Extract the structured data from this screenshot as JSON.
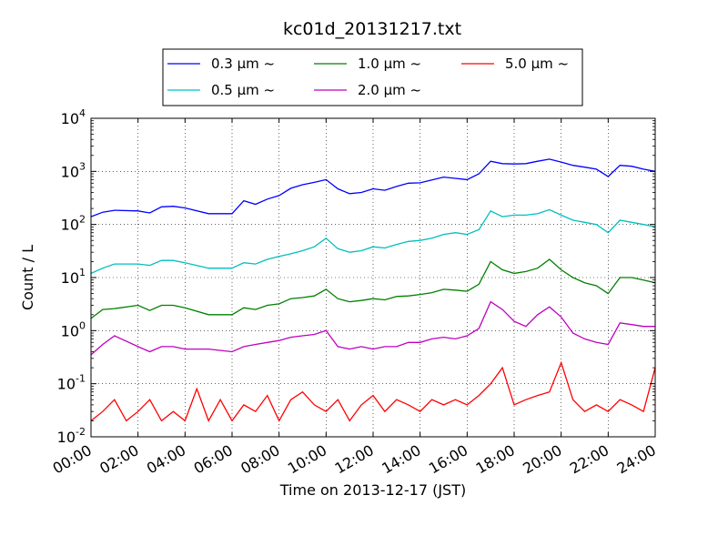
{
  "chart_data": {
    "type": "line",
    "title": "kc01d_20131217.txt",
    "xlabel": "Time on 2013-12-17 (JST)",
    "ylabel": "Count / L",
    "y_scale": "log",
    "ylim": [
      0.01,
      10000
    ],
    "xlim": [
      "00:00",
      "24:00"
    ],
    "grid": true,
    "legend_placement": "top-center",
    "x_ticks": [
      "00:00",
      "02:00",
      "04:00",
      "06:00",
      "08:00",
      "10:00",
      "12:00",
      "14:00",
      "16:00",
      "18:00",
      "20:00",
      "22:00",
      "24:00"
    ],
    "y_ticks": [
      {
        "value": 0.01,
        "base": "10",
        "exp": "-2"
      },
      {
        "value": 0.1,
        "base": "10",
        "exp": "-1"
      },
      {
        "value": 1,
        "base": "10",
        "exp": "0"
      },
      {
        "value": 10,
        "base": "10",
        "exp": "1"
      },
      {
        "value": 100,
        "base": "10",
        "exp": "2"
      },
      {
        "value": 1000,
        "base": "10",
        "exp": "3"
      },
      {
        "value": 10000,
        "base": "10",
        "exp": "4"
      }
    ],
    "series": [
      {
        "name": "0.3 μm ~",
        "color": "#0000ff",
        "x": [
          "00:00",
          "00:30",
          "01:00",
          "02:00",
          "02:30",
          "03:00",
          "03:30",
          "04:00",
          "05:00",
          "06:00",
          "06:30",
          "07:00",
          "07:30",
          "08:00",
          "08:30",
          "09:00",
          "09:30",
          "10:00",
          "10:30",
          "11:00",
          "11:30",
          "12:00",
          "12:30",
          "13:00",
          "13:30",
          "14:00",
          "14:30",
          "15:00",
          "15:30",
          "16:00",
          "16:30",
          "17:00",
          "17:30",
          "18:00",
          "18:30",
          "19:00",
          "19:30",
          "20:00",
          "20:30",
          "21:00",
          "21:30",
          "22:00",
          "22:30",
          "23:00",
          "23:30",
          "24:00"
        ],
        "y": [
          140,
          170,
          185,
          180,
          165,
          215,
          220,
          205,
          160,
          160,
          280,
          240,
          300,
          350,
          480,
          560,
          620,
          700,
          470,
          380,
          400,
          470,
          440,
          520,
          600,
          610,
          690,
          780,
          740,
          700,
          900,
          1550,
          1400,
          1380,
          1400,
          1550,
          1700,
          1500,
          1300,
          1200,
          1100,
          800,
          1300,
          1250,
          1100,
          1000
        ]
      },
      {
        "name": "0.5 μm ~",
        "color": "#00bfbf",
        "x": [
          "00:00",
          "00:30",
          "01:00",
          "02:00",
          "02:30",
          "03:00",
          "03:30",
          "04:00",
          "05:00",
          "06:00",
          "06:30",
          "07:00",
          "07:30",
          "08:00",
          "08:30",
          "09:00",
          "09:30",
          "10:00",
          "10:30",
          "11:00",
          "11:30",
          "12:00",
          "12:30",
          "13:00",
          "13:30",
          "14:00",
          "14:30",
          "15:00",
          "15:30",
          "16:00",
          "16:30",
          "17:00",
          "17:30",
          "18:00",
          "18:30",
          "19:00",
          "19:30",
          "20:00",
          "20:30",
          "21:00",
          "21:30",
          "22:00",
          "22:30",
          "23:00",
          "23:30",
          "24:00"
        ],
        "y": [
          12,
          15,
          18,
          18,
          17,
          21,
          21,
          19,
          15,
          15,
          19,
          18,
          22,
          25,
          28,
          32,
          38,
          55,
          35,
          30,
          32,
          38,
          36,
          42,
          48,
          50,
          55,
          65,
          70,
          65,
          80,
          180,
          140,
          150,
          150,
          160,
          190,
          150,
          120,
          110,
          100,
          70,
          120,
          110,
          100,
          90
        ]
      },
      {
        "name": "1.0 μm ~",
        "color": "#008000",
        "x": [
          "00:00",
          "00:30",
          "01:00",
          "02:00",
          "02:30",
          "03:00",
          "03:30",
          "04:00",
          "05:00",
          "06:00",
          "06:30",
          "07:00",
          "07:30",
          "08:00",
          "08:30",
          "09:00",
          "09:30",
          "10:00",
          "10:30",
          "11:00",
          "11:30",
          "12:00",
          "12:30",
          "13:00",
          "13:30",
          "14:00",
          "14:30",
          "15:00",
          "15:30",
          "16:00",
          "16:30",
          "17:00",
          "17:30",
          "18:00",
          "18:30",
          "19:00",
          "19:30",
          "20:00",
          "20:30",
          "21:00",
          "21:30",
          "22:00",
          "22:30",
          "23:00",
          "23:30",
          "24:00"
        ],
        "y": [
          1.7,
          2.5,
          2.6,
          3.0,
          2.4,
          3.0,
          3.0,
          2.7,
          2.0,
          2.0,
          2.7,
          2.5,
          3.0,
          3.2,
          4.0,
          4.2,
          4.5,
          6.0,
          4.0,
          3.5,
          3.7,
          4.0,
          3.8,
          4.4,
          4.5,
          4.8,
          5.2,
          6.0,
          5.8,
          5.5,
          7.5,
          20,
          14,
          12,
          13,
          15,
          22,
          14,
          10,
          8,
          7,
          5,
          10,
          10,
          9,
          8
        ]
      },
      {
        "name": "2.0 μm ~",
        "color": "#bf00bf",
        "x": [
          "00:00",
          "00:30",
          "01:00",
          "02:00",
          "02:30",
          "03:00",
          "03:30",
          "04:00",
          "05:00",
          "06:00",
          "06:30",
          "07:00",
          "07:30",
          "08:00",
          "08:30",
          "09:00",
          "09:30",
          "10:00",
          "10:30",
          "11:00",
          "11:30",
          "12:00",
          "12:30",
          "13:00",
          "13:30",
          "14:00",
          "14:30",
          "15:00",
          "15:30",
          "16:00",
          "16:30",
          "17:00",
          "17:30",
          "18:00",
          "18:30",
          "19:00",
          "19:30",
          "20:00",
          "20:30",
          "21:00",
          "21:30",
          "22:00",
          "22:30",
          "23:00",
          "23:30",
          "24:00"
        ],
        "y": [
          0.35,
          0.55,
          0.8,
          0.5,
          0.4,
          0.5,
          0.5,
          0.45,
          0.45,
          0.4,
          0.5,
          0.55,
          0.6,
          0.65,
          0.75,
          0.8,
          0.85,
          1.0,
          0.5,
          0.45,
          0.5,
          0.45,
          0.5,
          0.5,
          0.6,
          0.6,
          0.7,
          0.75,
          0.7,
          0.8,
          1.1,
          3.5,
          2.5,
          1.5,
          1.2,
          2.0,
          2.8,
          1.8,
          0.9,
          0.7,
          0.6,
          0.55,
          1.4,
          1.3,
          1.2,
          1.2
        ]
      },
      {
        "name": "5.0 μm ~",
        "color": "#ff0000",
        "x": [
          "00:00",
          "00:30",
          "01:00",
          "01:30",
          "02:00",
          "02:30",
          "03:00",
          "03:30",
          "04:00",
          "04:30",
          "05:00",
          "05:30",
          "06:00",
          "06:30",
          "07:00",
          "07:30",
          "08:00",
          "08:30",
          "09:00",
          "09:30",
          "10:00",
          "10:30",
          "11:00",
          "11:30",
          "12:00",
          "12:30",
          "13:00",
          "13:30",
          "14:00",
          "14:30",
          "15:00",
          "15:30",
          "16:00",
          "16:30",
          "17:00",
          "17:30",
          "18:00",
          "18:30",
          "19:00",
          "19:30",
          "20:00",
          "20:30",
          "21:00",
          "21:30",
          "22:00",
          "22:30",
          "23:00",
          "23:30",
          "24:00"
        ],
        "y": [
          0.02,
          0.03,
          0.05,
          0.02,
          0.03,
          0.05,
          0.02,
          0.03,
          0.02,
          0.08,
          0.02,
          0.05,
          0.02,
          0.04,
          0.03,
          0.06,
          0.02,
          0.05,
          0.07,
          0.04,
          0.03,
          0.05,
          0.02,
          0.04,
          0.06,
          0.03,
          0.05,
          0.04,
          0.03,
          0.05,
          0.04,
          0.05,
          0.04,
          0.06,
          0.1,
          0.2,
          0.04,
          0.05,
          0.06,
          0.07,
          0.25,
          0.05,
          0.03,
          0.04,
          0.03,
          0.05,
          0.04,
          0.03,
          0.2
        ]
      }
    ]
  }
}
